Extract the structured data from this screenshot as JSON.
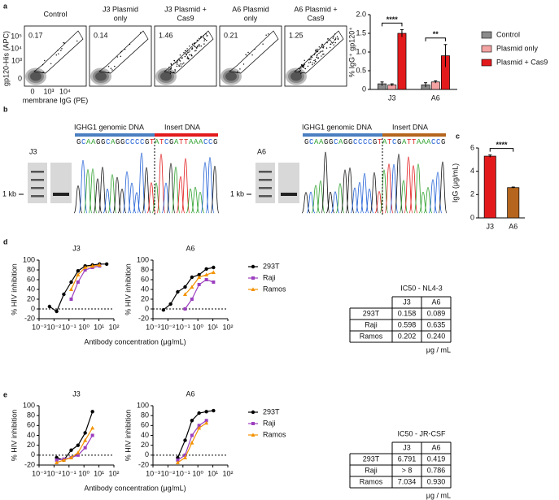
{
  "panel_labels": [
    "a",
    "b",
    "c",
    "d",
    "e"
  ],
  "flow": {
    "y_label": "gp120-His (APC)",
    "x_label": "membrane IgG (PE)",
    "y_ticks": [
      "10⁵",
      "10⁴",
      "10³",
      "0"
    ],
    "x_ticks": [
      "0",
      "10³",
      "10⁴"
    ],
    "plots": [
      {
        "title": [
          "Control"
        ],
        "gate": "0.17"
      },
      {
        "title": [
          "J3 Plasmid",
          "only"
        ],
        "gate": "0.14"
      },
      {
        "title": [
          "J3 Plasmid +",
          "Cas9"
        ],
        "gate": "1.46"
      },
      {
        "title": [
          "A6 Plasmid",
          "only"
        ],
        "gate": "0.21"
      },
      {
        "title": [
          "A6 Plasmid +",
          "Cas9"
        ],
        "gate": "1.25"
      }
    ]
  },
  "sequencing": [
    {
      "clone": "J3",
      "ladder": "1 kb",
      "genomic": "IGHG1 genomic DNA",
      "insert": "Insert DNA",
      "insert_color": "#e31a1c",
      "sequence": "GCAAGGCAGGCCCCGTATCGATTAAACCG"
    },
    {
      "clone": "A6",
      "ladder": "1 kb",
      "genomic": "IGHG1 genomic DNA",
      "insert": "Insert DNA",
      "insert_color": "#b5651d",
      "sequence": "GCAAGGCAGGCCCCGTATCGATTAAACCG"
    }
  ],
  "chart_data": [
    {
      "type": "bar",
      "ylabel": "% IgG⁺ gp120⁺",
      "categories": [
        "J3",
        "A6"
      ],
      "series": [
        {
          "name": "Control",
          "color": "#8c8c8c",
          "values": [
            0.15,
            0.12
          ],
          "errors": [
            0.05,
            0.06
          ]
        },
        {
          "name": "Plasmid only",
          "color": "#f4a3a3",
          "values": [
            0.12,
            0.2
          ],
          "errors": [
            0.03,
            0.03
          ]
        },
        {
          "name": "Plasmid + Cas9",
          "color": "#e31a1c",
          "values": [
            1.5,
            0.9
          ],
          "errors": [
            0.1,
            0.3
          ]
        }
      ],
      "ylim": [
        0,
        2
      ],
      "yticks": [
        0,
        0.5,
        {
          "value": 1,
          "label": "1.0"
        },
        1.5,
        {
          "value": 2,
          "label": "2.0"
        }
      ],
      "annotations": [
        "****",
        "**"
      ],
      "legend": "right"
    },
    {
      "type": "bar",
      "ylabel": "IgG (μg/mL)",
      "categories": [
        "J3",
        "A6"
      ],
      "values": [
        5.3,
        2.6
      ],
      "errors": [
        0.1,
        0.05
      ],
      "colors": [
        "#e31a1c",
        "#b5651d"
      ],
      "ylim": [
        0,
        6
      ],
      "yticks": [
        0,
        2,
        4,
        6
      ],
      "annotations": [
        "****"
      ]
    },
    {
      "type": "line",
      "title": "J3",
      "ylabel": "% HIV inhibition",
      "xlabel": "Antibody concentration (μg/mL)",
      "xscale": "log",
      "x": [
        0.005,
        0.015,
        0.045,
        0.14,
        0.4,
        1.2,
        3.7,
        11,
        33
      ],
      "series": [
        {
          "name": "293T",
          "color": "#000000",
          "marker": "circle",
          "values": [
            5,
            -5,
            30,
            55,
            78,
            88,
            90,
            92,
            92
          ]
        },
        {
          "name": "Raji",
          "color": "#9b3fbf",
          "marker": "square",
          "values": [
            null,
            null,
            null,
            20,
            55,
            80,
            85,
            88,
            null
          ]
        },
        {
          "name": "Ramos",
          "color": "#f39200",
          "marker": "triangle",
          "values": [
            null,
            null,
            null,
            40,
            70,
            85,
            88,
            90,
            null
          ]
        }
      ],
      "xlim": [
        0.001,
        100
      ],
      "xticks": [
        {
          "value": 0.001,
          "label": "10⁻³"
        },
        {
          "value": 0.01,
          "label": "10⁻²"
        },
        {
          "value": 0.1,
          "label": "10⁻¹"
        },
        {
          "value": 1,
          "label": "10⁰"
        },
        {
          "value": 10,
          "label": "10¹"
        },
        {
          "value": 100,
          "label": "10²"
        }
      ],
      "ylim": [
        -20,
        100
      ],
      "yticks": [
        -20,
        0,
        20,
        40,
        60,
        80,
        100
      ],
      "reference_line": 0
    },
    {
      "type": "line",
      "title": "A6",
      "ylabel": "% HIV inhibition",
      "xscale": "log",
      "x": [
        0.005,
        0.015,
        0.045,
        0.14,
        0.4,
        1.2,
        3.7,
        11,
        33
      ],
      "series": [
        {
          "name": "293T",
          "color": "#000000",
          "marker": "circle",
          "values": [
            -2,
            10,
            35,
            45,
            65,
            70,
            82,
            85,
            null
          ]
        },
        {
          "name": "Raji",
          "color": "#9b3fbf",
          "marker": "square",
          "values": [
            null,
            null,
            null,
            0,
            20,
            50,
            60,
            55,
            null
          ]
        },
        {
          "name": "Ramos",
          "color": "#f39200",
          "marker": "triangle",
          "values": [
            null,
            null,
            null,
            30,
            45,
            65,
            70,
            75,
            null
          ]
        }
      ],
      "xlim": [
        0.001,
        100
      ],
      "xticks": [
        {
          "value": 0.001,
          "label": "10⁻³"
        },
        {
          "value": 0.01,
          "label": "10⁻²"
        },
        {
          "value": 0.1,
          "label": "10⁻¹"
        },
        {
          "value": 1,
          "label": "10⁰"
        },
        {
          "value": 10,
          "label": "10¹"
        },
        {
          "value": 100,
          "label": "10²"
        }
      ],
      "ylim": [
        -20,
        100
      ],
      "yticks": [
        -20,
        0,
        20,
        40,
        60,
        80,
        100
      ],
      "reference_line": 0,
      "legend": "right"
    },
    {
      "type": "line",
      "title": "J3",
      "ylabel": "% HIV inhibition",
      "xlabel": "Antibody concentration (μg/mL)",
      "xscale": "log",
      "x": [
        0.005,
        0.015,
        0.045,
        0.14,
        0.4,
        1.2,
        3.7,
        11,
        33
      ],
      "series": [
        {
          "name": "293T",
          "color": "#000000",
          "marker": "circle",
          "values": [
            null,
            -5,
            -10,
            10,
            20,
            45,
            88,
            null,
            null
          ]
        },
        {
          "name": "Raji",
          "color": "#9b3fbf",
          "marker": "square",
          "values": [
            null,
            -10,
            -8,
            -5,
            0,
            15,
            40,
            null,
            null
          ]
        },
        {
          "name": "Ramos",
          "color": "#f39200",
          "marker": "triangle",
          "values": [
            null,
            -15,
            -10,
            -5,
            5,
            30,
            55,
            null,
            null
          ]
        }
      ],
      "xlim": [
        0.001,
        100
      ],
      "xticks": [
        {
          "value": 0.001,
          "label": "10⁻³"
        },
        {
          "value": 0.01,
          "label": "10⁻²"
        },
        {
          "value": 0.1,
          "label": "10⁻¹"
        },
        {
          "value": 1,
          "label": "10⁰"
        },
        {
          "value": 10,
          "label": "10¹"
        },
        {
          "value": 100,
          "label": "10²"
        }
      ],
      "ylim": [
        -20,
        100
      ],
      "yticks": [
        -20,
        0,
        20,
        40,
        60,
        80,
        100
      ],
      "reference_line": 0
    },
    {
      "type": "line",
      "title": "A6",
      "ylabel": "% HIV inhibition",
      "xscale": "log",
      "x": [
        0.005,
        0.015,
        0.045,
        0.14,
        0.4,
        1.2,
        3.7,
        11,
        33
      ],
      "series": [
        {
          "name": "293T",
          "color": "#000000",
          "marker": "circle",
          "values": [
            null,
            null,
            -5,
            30,
            70,
            85,
            88,
            90,
            null
          ]
        },
        {
          "name": "Raji",
          "color": "#9b3fbf",
          "marker": "square",
          "values": [
            null,
            null,
            -10,
            0,
            40,
            60,
            70,
            null,
            null
          ]
        },
        {
          "name": "Ramos",
          "color": "#f39200",
          "marker": "triangle",
          "values": [
            null,
            null,
            -15,
            -5,
            25,
            55,
            65,
            null,
            null
          ]
        }
      ],
      "xlim": [
        0.001,
        100
      ],
      "xticks": [
        {
          "value": 0.001,
          "label": "10⁻³"
        },
        {
          "value": 0.01,
          "label": "10⁻²"
        },
        {
          "value": 0.1,
          "label": "10⁻¹"
        },
        {
          "value": 1,
          "label": "10⁰"
        },
        {
          "value": 10,
          "label": "10¹"
        },
        {
          "value": 100,
          "label": "10²"
        }
      ],
      "ylim": [
        -20,
        100
      ],
      "yticks": [
        -20,
        0,
        20,
        40,
        60,
        80,
        100
      ],
      "reference_line": 0,
      "legend": "right"
    }
  ],
  "tables": [
    {
      "title": "IC50 - NL4-3",
      "columns": [
        "J3",
        "A6"
      ],
      "unit": "μg / mL",
      "rows": [
        {
          "label": "293T",
          "color": "#000000",
          "values": [
            "0.158",
            "0.089"
          ]
        },
        {
          "label": "Raji",
          "color": "#9b3fbf",
          "values": [
            "0.598",
            "0.635"
          ]
        },
        {
          "label": "Ramos",
          "color": "#f39200",
          "values": [
            "0.202",
            "0.240"
          ]
        }
      ]
    },
    {
      "title": "IC50 - JR-CSF",
      "columns": [
        "J3",
        "A6"
      ],
      "unit": "μg / mL",
      "rows": [
        {
          "label": "293T",
          "color": "#000000",
          "values": [
            "6.791",
            "0.419"
          ]
        },
        {
          "label": "Raji",
          "color": "#9b3fbf",
          "values": [
            "> 8",
            "0.786"
          ]
        },
        {
          "label": "Ramos",
          "color": "#f39200",
          "values": [
            "7.034",
            "0.930"
          ]
        }
      ]
    }
  ]
}
